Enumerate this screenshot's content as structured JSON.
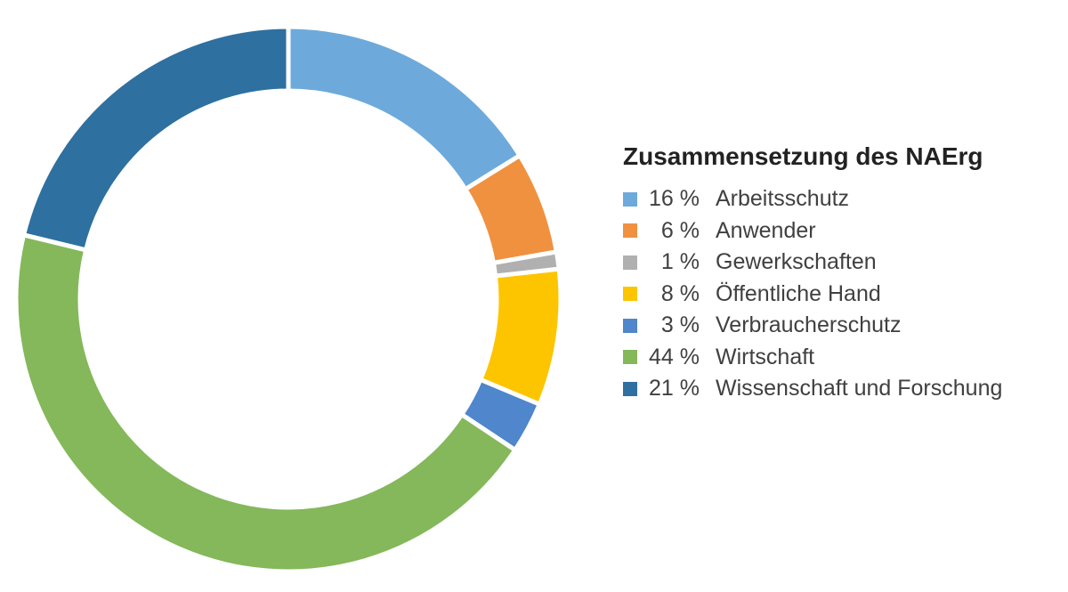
{
  "chart_data": {
    "type": "pie",
    "variant": "donut",
    "title": "Zusammensetzung des NAErg",
    "legend_position": "right",
    "categories": [
      "Arbeitsschutz",
      "Anwender",
      "Gewerkschaften",
      "Öffentliche Hand",
      "Verbraucherschutz",
      "Wirtschaft",
      "Wissenschaft und Forschung"
    ],
    "values": [
      16,
      6,
      1,
      8,
      3,
      44,
      21
    ],
    "value_labels": [
      "16 %",
      "6 %",
      "1 %",
      "8 %",
      "3 %",
      "44 %",
      "21 %"
    ],
    "colors": [
      "#6daadb",
      "#f0913f",
      "#b0b0b0",
      "#fdc500",
      "#4f86cc",
      "#84b85a",
      "#2e70a0"
    ]
  }
}
